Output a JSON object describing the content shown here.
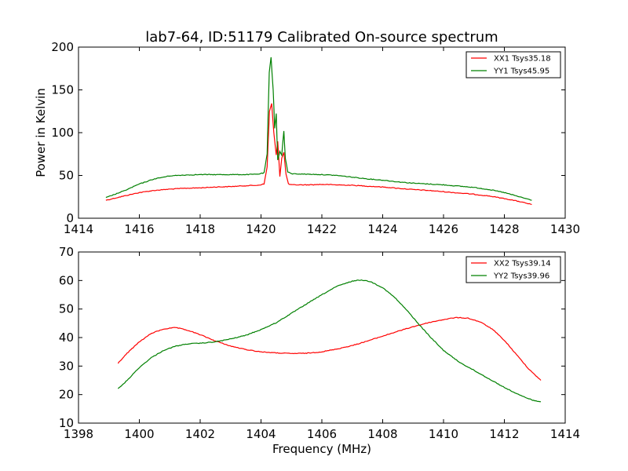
{
  "chart_data": [
    {
      "type": "line",
      "title": "lab7-64, ID:51179 Calibrated On-source spectrum",
      "xlabel": "",
      "ylabel": "Power in Kelvin",
      "xlim": [
        1414,
        1430
      ],
      "ylim": [
        0,
        200
      ],
      "xticks": [
        "1414",
        "1416",
        "1418",
        "1420",
        "1422",
        "1424",
        "1426",
        "1428",
        "1430"
      ],
      "yticks": [
        "0",
        "50",
        "100",
        "150",
        "200"
      ],
      "legend_position": "top-right",
      "grid": false,
      "series": [
        {
          "name": "XX1 Tsys35.18",
          "color": "#ff0000",
          "x": [
            1414.9,
            1415.5,
            1416,
            1416.5,
            1417,
            1417.5,
            1418,
            1418.5,
            1419,
            1419.5,
            1419.9,
            1420.1,
            1420.2,
            1420.28,
            1420.35,
            1420.42,
            1420.5,
            1420.55,
            1420.62,
            1420.68,
            1420.75,
            1420.82,
            1420.9,
            1421,
            1421.5,
            1422,
            1422.5,
            1423,
            1423.5,
            1424,
            1424.5,
            1425,
            1425.5,
            1426,
            1426.5,
            1427,
            1427.5,
            1428,
            1428.5,
            1428.9
          ],
          "y": [
            21,
            26,
            30,
            32.5,
            34,
            35,
            35.5,
            36.5,
            37,
            38,
            38.5,
            40,
            60,
            125,
            134,
            100,
            74,
            90,
            49,
            70,
            77,
            52,
            40,
            39,
            39,
            39.5,
            39,
            38.5,
            37.5,
            36.5,
            35,
            33.5,
            32.5,
            31,
            29.5,
            28,
            26,
            23,
            19.5,
            16
          ]
        },
        {
          "name": "YY1 Tsys45.95",
          "color": "#008000",
          "x": [
            1414.9,
            1415.5,
            1416,
            1416.5,
            1417,
            1417.5,
            1418,
            1418.5,
            1419,
            1419.5,
            1419.9,
            1420.1,
            1420.2,
            1420.27,
            1420.33,
            1420.4,
            1420.45,
            1420.5,
            1420.55,
            1420.62,
            1420.68,
            1420.75,
            1420.8,
            1420.88,
            1421,
            1421.5,
            1422,
            1422.5,
            1423,
            1423.5,
            1424,
            1424.5,
            1425,
            1425.5,
            1426,
            1426.5,
            1427,
            1427.5,
            1428,
            1428.5,
            1428.9
          ],
          "y": [
            24,
            32,
            40,
            46,
            49.5,
            50.5,
            51,
            51,
            51,
            51,
            51.5,
            53,
            75,
            170,
            188,
            150,
            105,
            122,
            68,
            78,
            74,
            102,
            70,
            54,
            52,
            51.5,
            51,
            50,
            48,
            46,
            44.5,
            42.5,
            41,
            40,
            39,
            37.5,
            36,
            33.5,
            30,
            25,
            21
          ]
        }
      ]
    },
    {
      "type": "line",
      "title": "",
      "xlabel": "Frequency (MHz)",
      "ylabel": "",
      "xlim": [
        1398,
        1414
      ],
      "ylim": [
        10,
        70
      ],
      "xticks": [
        "1398",
        "1400",
        "1402",
        "1404",
        "1406",
        "1408",
        "1410",
        "1412",
        "1414"
      ],
      "yticks": [
        "10",
        "20",
        "30",
        "40",
        "50",
        "60",
        "70"
      ],
      "legend_position": "top-right",
      "grid": false,
      "series": [
        {
          "name": "XX2 Tsys39.14",
          "color": "#ff0000",
          "x": [
            1399.3,
            1399.6,
            1400,
            1400.4,
            1400.8,
            1401.2,
            1401.6,
            1402,
            1402.5,
            1403,
            1403.5,
            1404,
            1404.5,
            1405,
            1405.5,
            1406,
            1406.5,
            1407,
            1407.5,
            1408,
            1408.5,
            1409,
            1409.5,
            1410,
            1410.4,
            1410.8,
            1411.2,
            1411.6,
            1412,
            1412.4,
            1412.8,
            1413.2
          ],
          "y": [
            31,
            34.5,
            38.5,
            41.5,
            43,
            43.5,
            42.5,
            41,
            38.8,
            37,
            35.8,
            35,
            34.6,
            34.4,
            34.5,
            35,
            36,
            37.2,
            38.8,
            40.5,
            42.2,
            43.8,
            45.2,
            46.3,
            47,
            46.8,
            45.5,
            43,
            39,
            34,
            29,
            25
          ]
        },
        {
          "name": "YY2 Tsys39.96",
          "color": "#008000",
          "x": [
            1399.3,
            1399.6,
            1400,
            1400.4,
            1400.8,
            1401.2,
            1401.6,
            1402,
            1402.5,
            1403,
            1403.5,
            1404,
            1404.5,
            1405,
            1405.5,
            1406,
            1406.5,
            1407,
            1407.3,
            1407.6,
            1408,
            1408.4,
            1408.8,
            1409.2,
            1409.6,
            1410,
            1410.5,
            1411,
            1411.5,
            1412,
            1412.5,
            1413,
            1413.2
          ],
          "y": [
            22,
            25,
            29.5,
            33,
            35.5,
            37,
            37.8,
            38,
            38.5,
            39.5,
            40.8,
            42.8,
            45.2,
            48.5,
            51.8,
            55,
            58,
            59.8,
            60.2,
            59.6,
            57.5,
            54,
            49.5,
            44.5,
            39.8,
            35.5,
            31.5,
            28.5,
            25.5,
            22.5,
            19.8,
            17.8,
            17.5
          ]
        }
      ]
    }
  ]
}
